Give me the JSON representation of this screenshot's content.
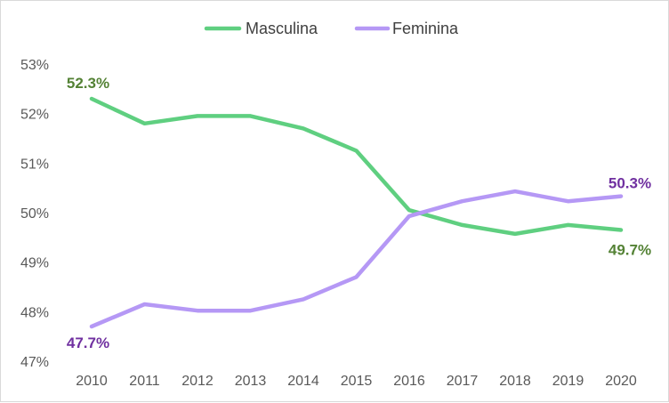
{
  "chart_data": {
    "type": "line",
    "title": "",
    "xlabel": "",
    "ylabel": "",
    "x": [
      "2010",
      "2011",
      "2012",
      "2013",
      "2014",
      "2015",
      "2016",
      "2017",
      "2018",
      "2019",
      "2020"
    ],
    "ylim": [
      47,
      53
    ],
    "y_ticks": [
      "47%",
      "48%",
      "49%",
      "50%",
      "51%",
      "52%",
      "53%"
    ],
    "grid": false,
    "legend_position": "top-center",
    "series": [
      {
        "name": "Masculina",
        "color": "#5fcf80",
        "label_color": "#548235",
        "values": [
          52.3,
          51.8,
          51.95,
          51.95,
          51.7,
          51.25,
          50.05,
          49.75,
          49.57,
          49.75,
          49.65
        ],
        "data_labels": [
          {
            "index": 0,
            "text": "52.3%"
          },
          {
            "index": 10,
            "text": "49.7%"
          }
        ]
      },
      {
        "name": "Feminina",
        "color": "#b598f5",
        "label_color": "#7030a0",
        "values": [
          47.7,
          48.15,
          48.02,
          48.02,
          48.25,
          48.7,
          49.93,
          50.23,
          50.43,
          50.23,
          50.33
        ],
        "data_labels": [
          {
            "index": 0,
            "text": "47.7%"
          },
          {
            "index": 10,
            "text": "50.3%"
          }
        ]
      }
    ]
  }
}
